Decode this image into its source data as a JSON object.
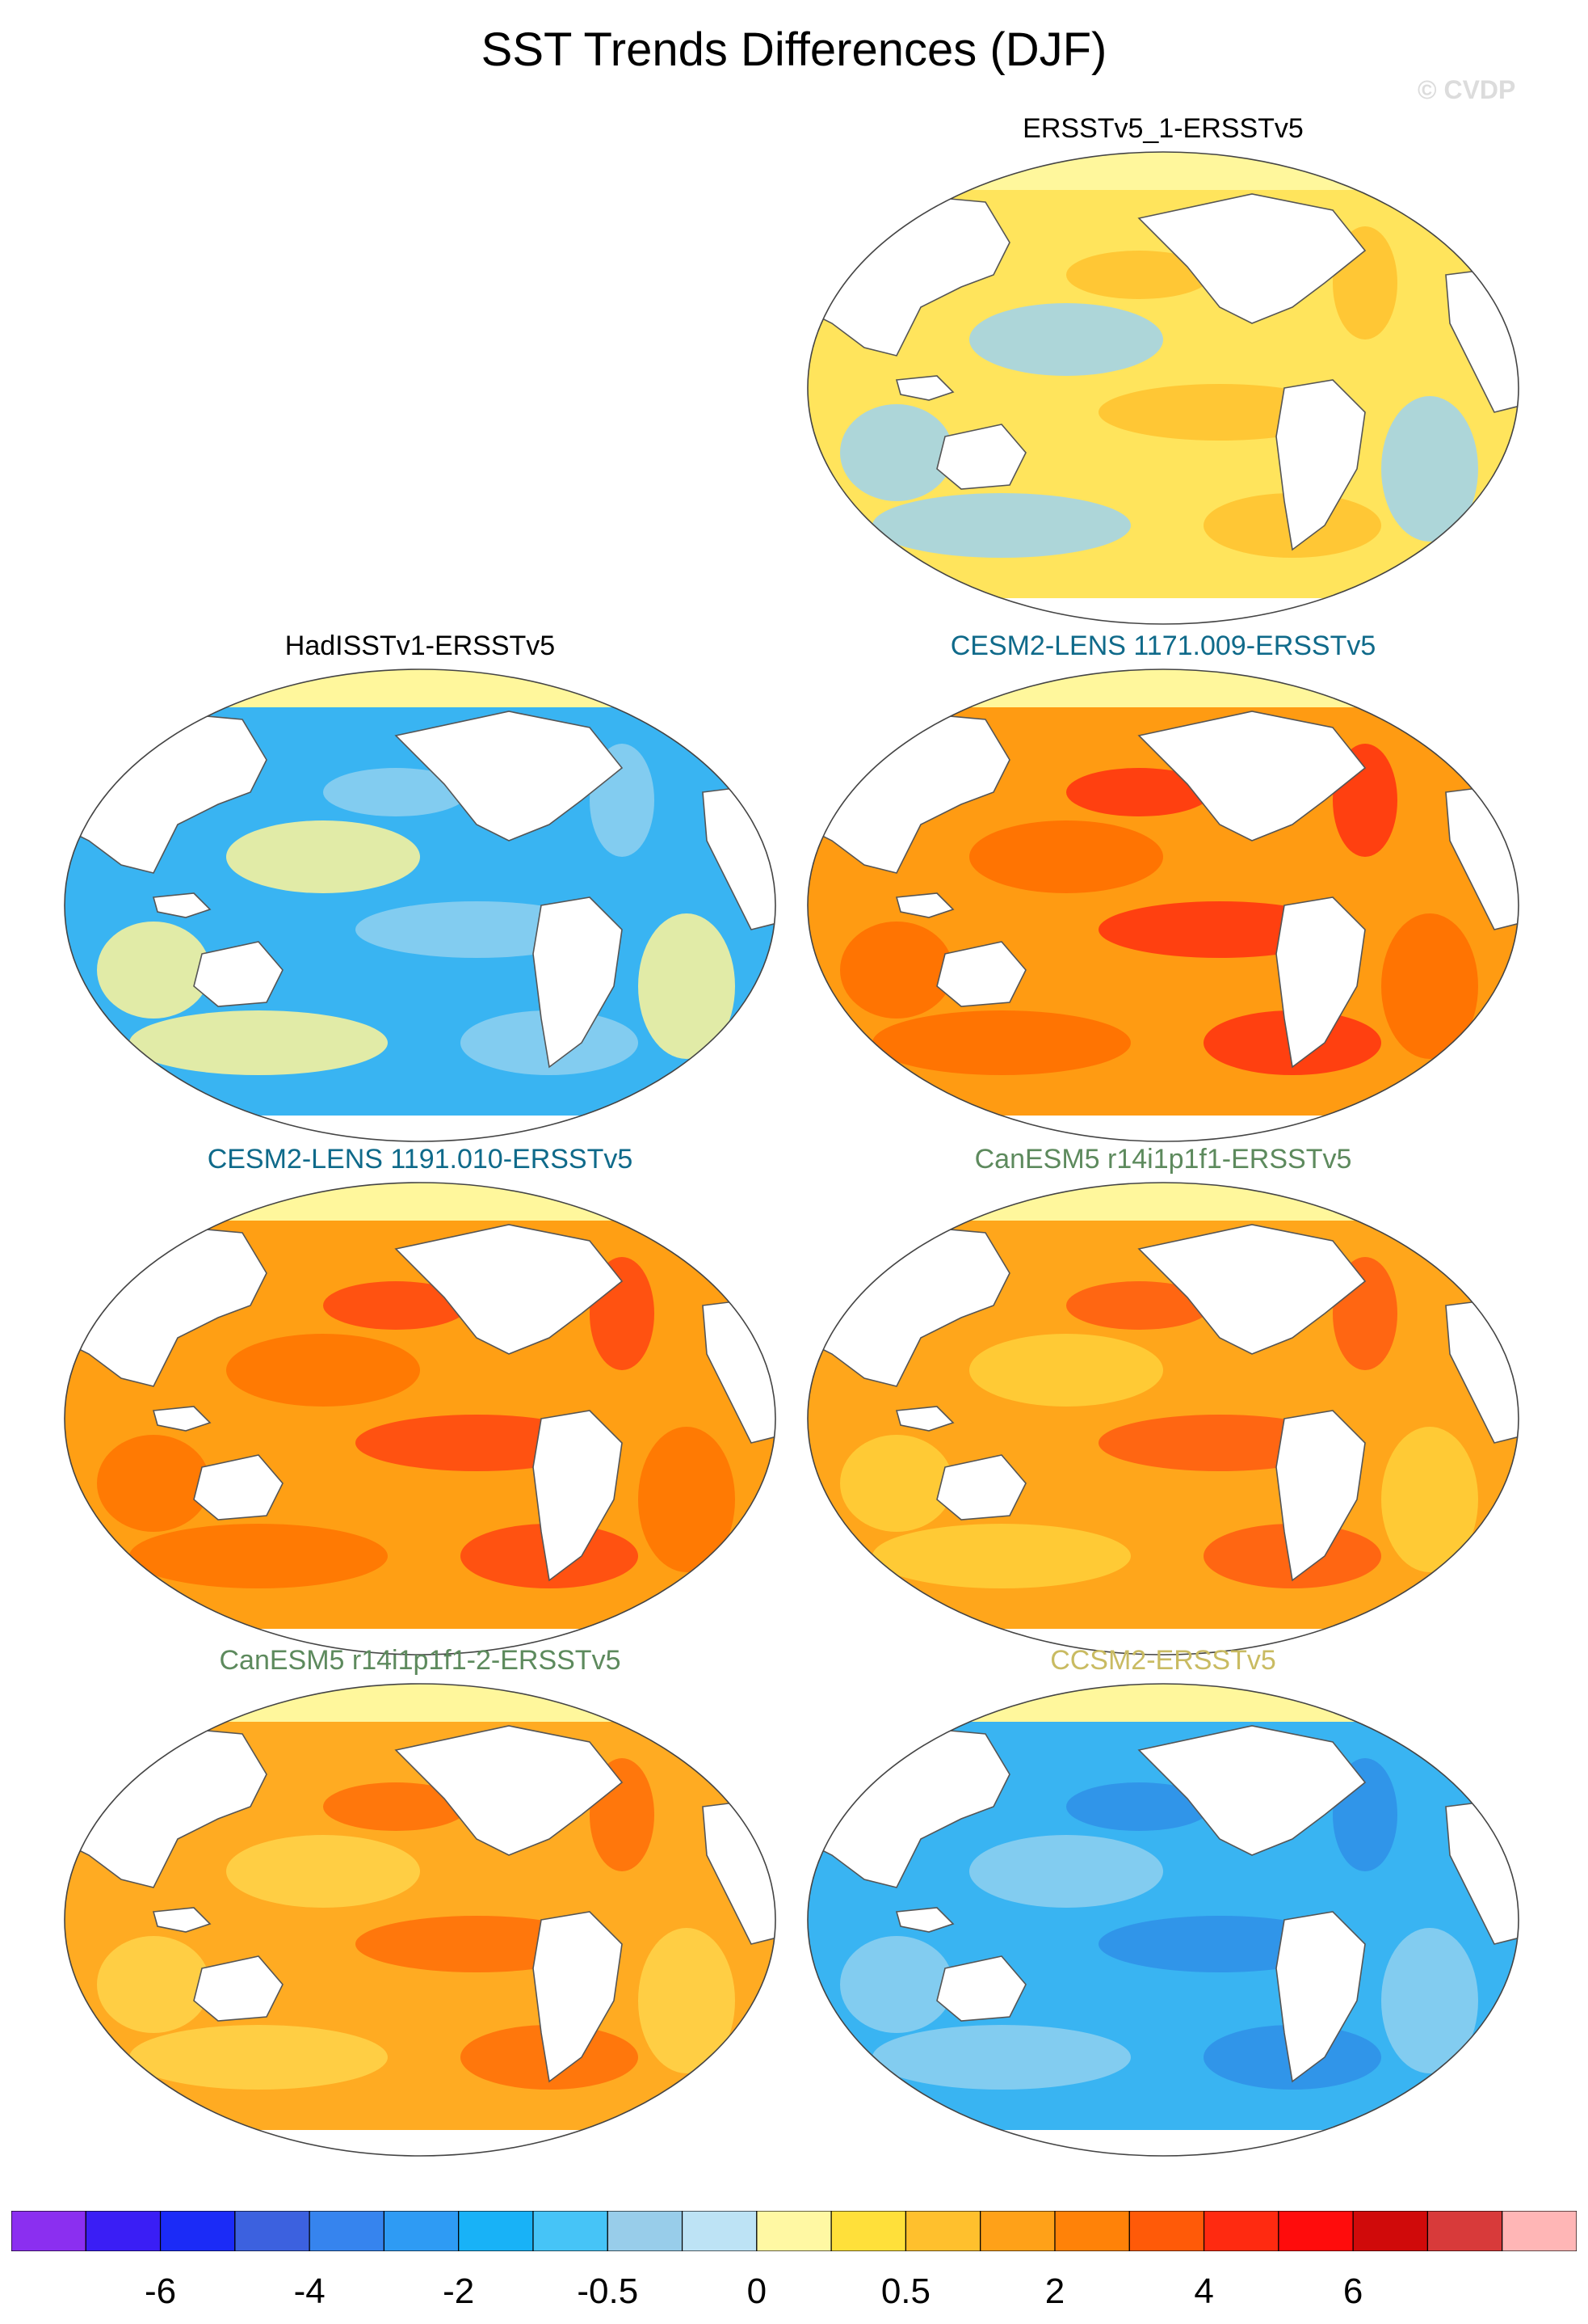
{
  "figure": {
    "title": "SST Trends Differences (DJF)",
    "watermark": "© CVDP"
  },
  "panels": [
    {
      "id": "p1",
      "title": "ERSSTv5_1-ERSSTv5",
      "title_color": "#000000",
      "ocean_base": "#ffe45c",
      "accent": "#9fd3ee",
      "accent2": "#ffc22e",
      "ice": "#fff79c"
    },
    {
      "id": "p2",
      "title": "HadISSTv1-ERSSTv5",
      "title_color": "#000000",
      "ocean_base": "#39b4f2",
      "accent": "#fff59a",
      "accent2": "#8fd0f0",
      "ice": "#fff79c"
    },
    {
      "id": "p3",
      "title": "CESM2-LENS 1171.009-ERSSTv5",
      "title_color": "#0f6a8a",
      "ocean_base": "#ff9b12",
      "accent": "#ff6d00",
      "accent2": "#ff3010",
      "ice": "#fff79c"
    },
    {
      "id": "p4",
      "title": "CESM2-LENS 1191.010-ERSSTv5",
      "title_color": "#0f6a8a",
      "ocean_base": "#ff9f14",
      "accent": "#ff7300",
      "accent2": "#ff4410",
      "ice": "#fff79c"
    },
    {
      "id": "p5",
      "title": "CanESM5 r14i1p1f1-ERSSTv5",
      "title_color": "#5d8a5d",
      "ocean_base": "#ffa61b",
      "accent": "#ffd03a",
      "accent2": "#ff5a10",
      "ice": "#fff79c"
    },
    {
      "id": "p6",
      "title": "CanESM5 r14i1p1f1-2-ERSSTv5",
      "title_color": "#5d8a5d",
      "ocean_base": "#ffab22",
      "accent": "#ffd34a",
      "accent2": "#ff6d08",
      "ice": "#fff79c"
    },
    {
      "id": "p7",
      "title": "CCSM2-ERSSTv5",
      "title_color": "#c9bb62",
      "ocean_base": "#39b4f2",
      "accent": "#8fd0f0",
      "accent2": "#2f8fe8",
      "ice": "#fff79c"
    }
  ],
  "colorbar": {
    "colors": [
      "#8b2ff0",
      "#3a1ef5",
      "#1b2bf7",
      "#3c61df",
      "#3684ee",
      "#2e9bf4",
      "#18b2f7",
      "#46c4f7",
      "#98cdea",
      "#bde3f5",
      "#fff8a3",
      "#ffe03a",
      "#ffc02d",
      "#ffa118",
      "#ff8208",
      "#ff5a08",
      "#ff2a10",
      "#ff0c0c",
      "#d00a0a",
      "#d83a3a",
      "#ffb6b6"
    ],
    "labels": [
      "-6",
      "-4",
      "-2",
      "-0.5",
      "0",
      "0.5",
      "2",
      "4",
      "6"
    ]
  }
}
